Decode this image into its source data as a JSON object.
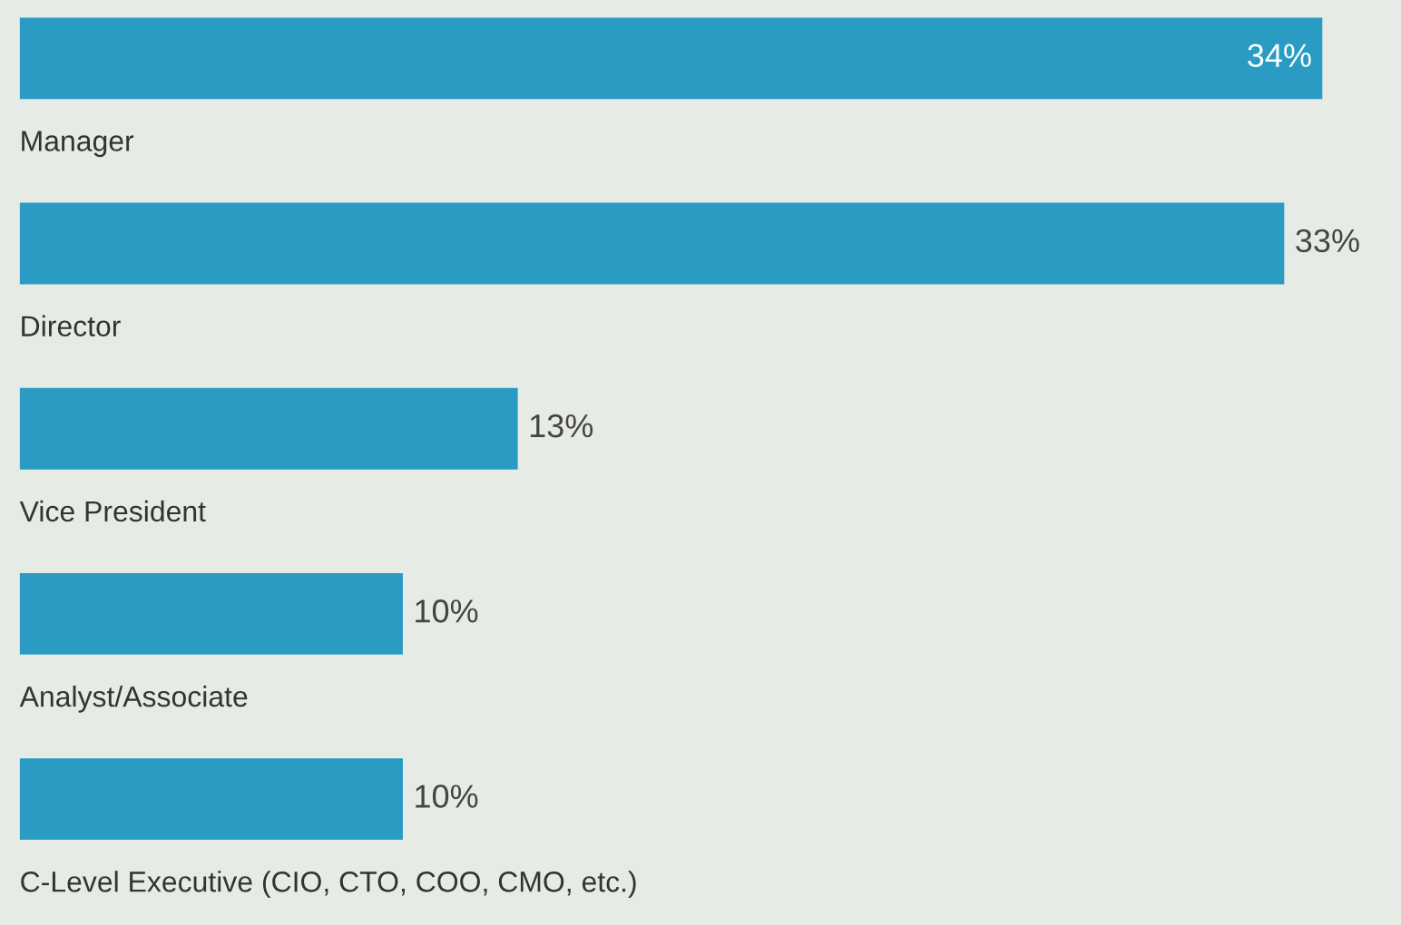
{
  "chart_data": {
    "type": "bar",
    "orientation": "horizontal",
    "categories": [
      "Manager",
      "Director",
      "Vice President",
      "Analyst/Associate",
      "C-Level Executive (CIO, CTO, COO, CMO, etc.)"
    ],
    "values": [
      34,
      33,
      13,
      10,
      10
    ],
    "value_labels": [
      "34%",
      "33%",
      "13%",
      "10%",
      "10%"
    ],
    "color": "#2a9cc4"
  }
}
